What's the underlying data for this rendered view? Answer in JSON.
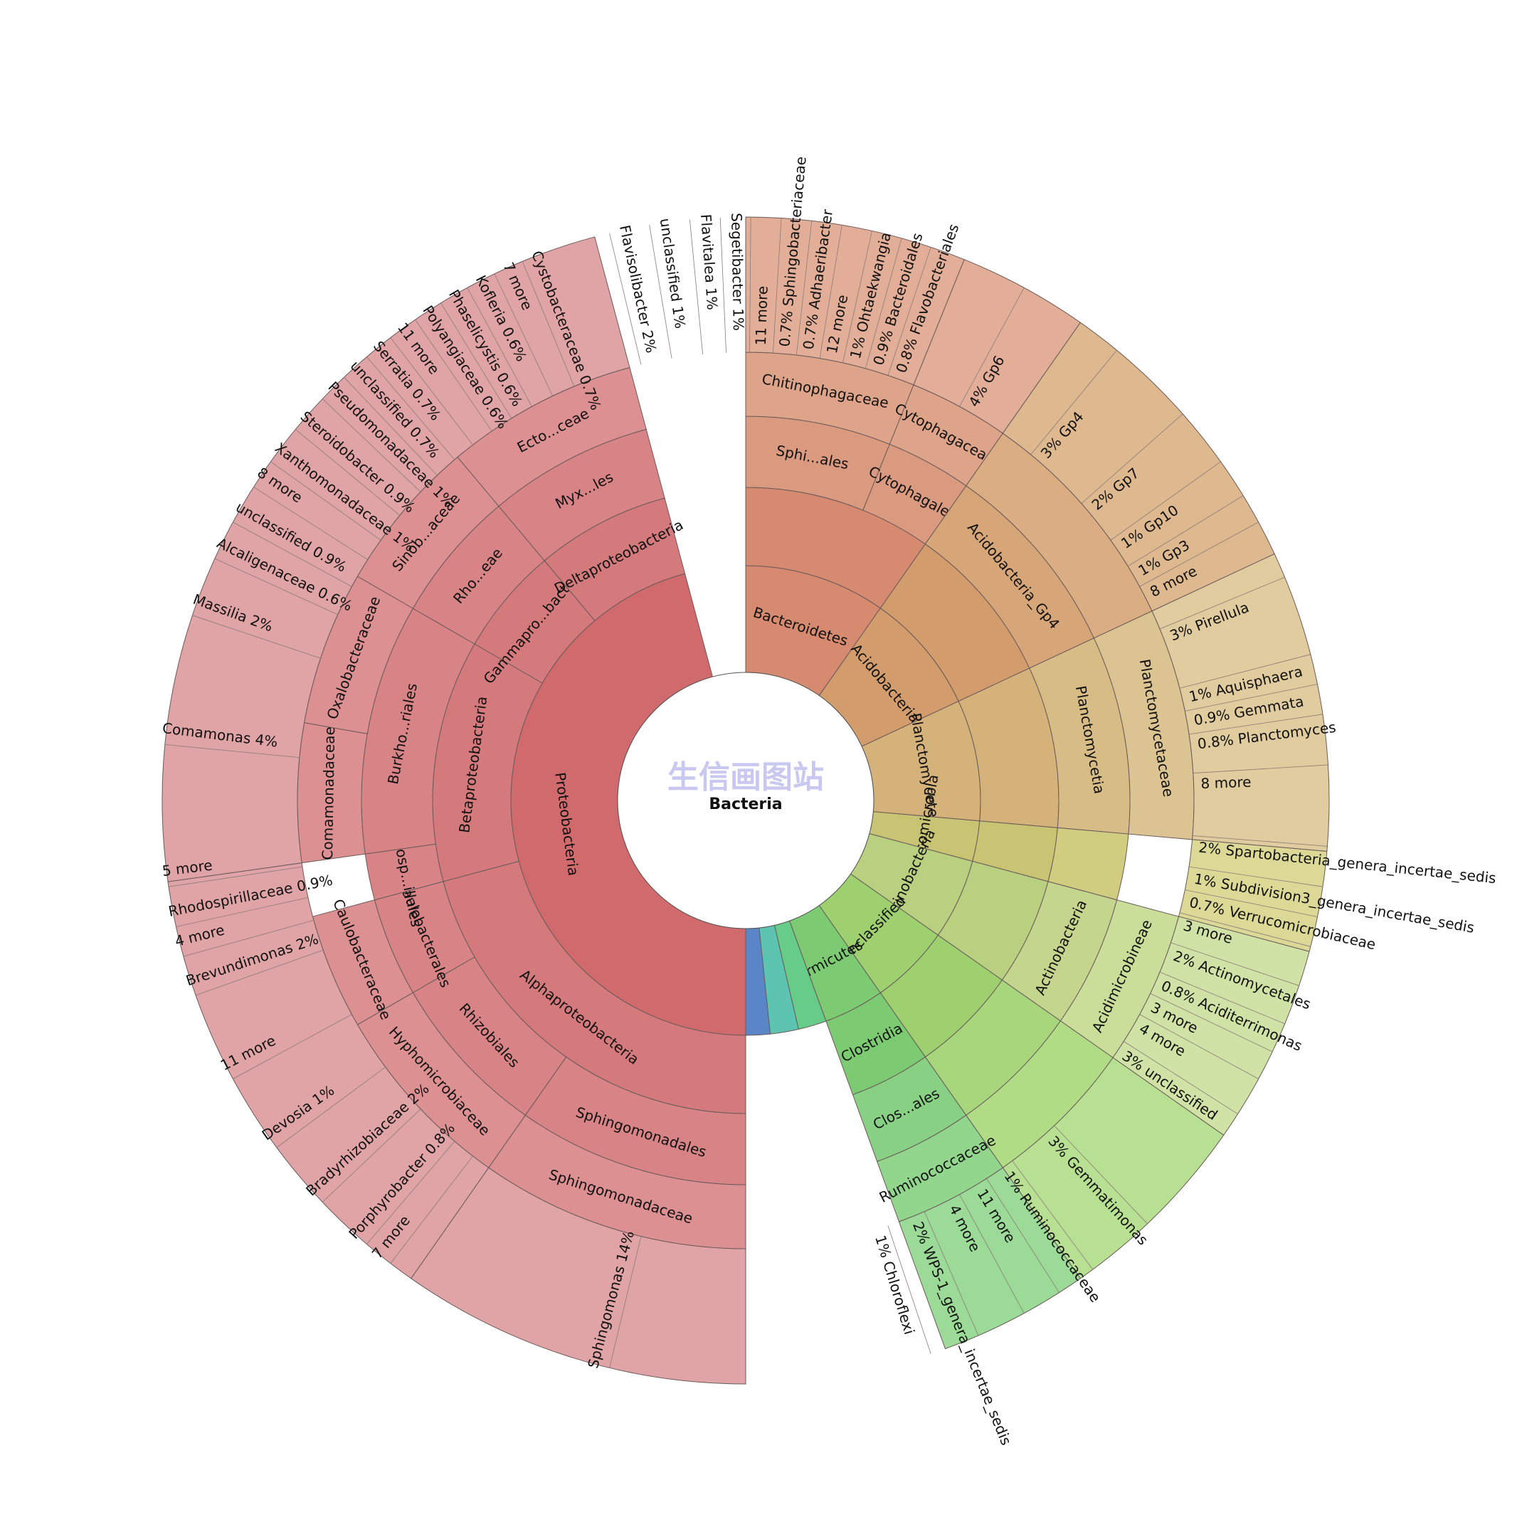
{
  "chart_data": {
    "type": "sunburst",
    "center_label": "Bacteria",
    "watermark": "生信画图站",
    "ring_count": 5,
    "wedges": [
      {
        "ring": 1,
        "start": 0,
        "end": 35,
        "label": "Bacteroidetes",
        "color": "#d68a70"
      },
      {
        "ring": 1,
        "start": 35,
        "end": 65,
        "label": "Acidobacteria",
        "color": "#d29c6c"
      },
      {
        "ring": 1,
        "start": 65,
        "end": 95,
        "label": "Planctomycetes",
        "color": "#d4b27a"
      },
      {
        "ring": 1,
        "start": 95,
        "end": 105,
        "label": "Verrucomicrobia",
        "color": "#c8c474"
      },
      {
        "ring": 1,
        "start": 105,
        "end": 125,
        "label": "Actinobacteria",
        "color": "#b8d080"
      },
      {
        "ring": 1,
        "start": 125,
        "end": 145,
        "label": "unclassified",
        "color": "#9ed070"
      },
      {
        "ring": 1,
        "start": 145,
        "end": 160,
        "label": "Firmicutes",
        "color": "#7cca72"
      },
      {
        "ring": 1,
        "start": 160,
        "end": 167,
        "label": "",
        "color": "#66cc88"
      },
      {
        "ring": 1,
        "start": 167,
        "end": 174,
        "label": "",
        "color": "#5cc4b0"
      },
      {
        "ring": 1,
        "start": 174,
        "end": 180,
        "label": "",
        "color": "#5a86c8"
      },
      {
        "ring": 1,
        "start": 180,
        "end": 345,
        "label": "Proteobacteria",
        "color": "#d06a6c"
      },
      {
        "ring": 2,
        "start": 0,
        "end": 35,
        "label": "",
        "color": "#d68a70"
      },
      {
        "ring": 2,
        "start": 35,
        "end": 65,
        "label": "",
        "color": "#d29c6c"
      },
      {
        "ring": 2,
        "start": 65,
        "end": 95,
        "label": "",
        "color": "#d4b27a"
      },
      {
        "ring": 2,
        "start": 95,
        "end": 105,
        "label": "",
        "color": "#c8c474"
      },
      {
        "ring": 2,
        "start": 105,
        "end": 125,
        "label": "",
        "color": "#b8d080"
      },
      {
        "ring": 2,
        "start": 125,
        "end": 145,
        "label": "",
        "color": "#9ed070"
      },
      {
        "ring": 2,
        "start": 145,
        "end": 160,
        "label": "Clostridia",
        "color": "#7cca72"
      },
      {
        "ring": 2,
        "start": 180,
        "end": 255,
        "label": "Alphaproteobacteria",
        "color": "#d47a7c"
      },
      {
        "ring": 2,
        "start": 255,
        "end": 300,
        "label": "Betaproteobacteria",
        "color": "#d47a7c"
      },
      {
        "ring": 2,
        "start": 300,
        "end": 320,
        "label": "Gammapro...bacteria",
        "color": "#d47a7c"
      },
      {
        "ring": 2,
        "start": 320,
        "end": 345,
        "label": "Deltaproteobacteria",
        "color": "#d47a7c"
      },
      {
        "ring": 3,
        "start": 0,
        "end": 22,
        "label": "Sphi...ales",
        "color": "#da9a80"
      },
      {
        "ring": 3,
        "start": 22,
        "end": 35,
        "label": "Cytophagales",
        "color": "#da9a80"
      },
      {
        "ring": 3,
        "start": 35,
        "end": 65,
        "label": "Acidobacteria_Gp4",
        "color": "#d6a678"
      },
      {
        "ring": 3,
        "start": 65,
        "end": 95,
        "label": "Planctomycetia",
        "color": "#d8bc86"
      },
      {
        "ring": 3,
        "start": 95,
        "end": 105,
        "label": "",
        "color": "#d0cc80"
      },
      {
        "ring": 3,
        "start": 105,
        "end": 125,
        "label": "Actinobacteria",
        "color": "#c4d68e"
      },
      {
        "ring": 3,
        "start": 125,
        "end": 145,
        "label": "",
        "color": "#a8d67c"
      },
      {
        "ring": 3,
        "start": 145,
        "end": 160,
        "label": "Clos...ales",
        "color": "#88d084"
      },
      {
        "ring": 3,
        "start": 180,
        "end": 215,
        "label": "Sphingomonadales",
        "color": "#d88486"
      },
      {
        "ring": 3,
        "start": 215,
        "end": 240,
        "label": "Rhizobiales",
        "color": "#d88486"
      },
      {
        "ring": 3,
        "start": 240,
        "end": 255,
        "label": "Caulobacterales",
        "color": "#d88486"
      },
      {
        "ring": 3,
        "start": 255,
        "end": 262,
        "label": "Rhodosp...illales",
        "color": "#d88486"
      },
      {
        "ring": 3,
        "start": 262,
        "end": 300,
        "label": "Burkho...riales",
        "color": "#d88486"
      },
      {
        "ring": 3,
        "start": 300,
        "end": 320,
        "label": "Rho...eae",
        "color": "#d88486"
      },
      {
        "ring": 3,
        "start": 320,
        "end": 345,
        "label": "Myx...les",
        "color": "#d88486"
      },
      {
        "ring": 4,
        "start": 0,
        "end": 22,
        "label": "Chitinophagaceae",
        "color": "#dea48a"
      },
      {
        "ring": 4,
        "start": 22,
        "end": 35,
        "label": "Cytophagaceae",
        "color": "#dea48a"
      },
      {
        "ring": 4,
        "start": 35,
        "end": 65,
        "label": "",
        "color": "#daae82"
      },
      {
        "ring": 4,
        "start": 65,
        "end": 95,
        "label": "Planctomycetaceae",
        "color": "#dcc492"
      },
      {
        "ring": 4,
        "start": 105,
        "end": 125,
        "label": "Acidimicrobineae",
        "color": "#cade9a"
      },
      {
        "ring": 4,
        "start": 125,
        "end": 145,
        "label": "",
        "color": "#b0dc86"
      },
      {
        "ring": 4,
        "start": 145,
        "end": 160,
        "label": "Ruminococcaceae",
        "color": "#92d68e"
      },
      {
        "ring": 4,
        "start": 180,
        "end": 215,
        "label": "Sphingomonadaceae",
        "color": "#dc9092"
      },
      {
        "ring": 4,
        "start": 215,
        "end": 240,
        "label": "Hyphomicrobiaceae",
        "color": "#dc9092"
      },
      {
        "ring": 4,
        "start": 240,
        "end": 255,
        "label": "Caulobacteraceae",
        "color": "#dc9092"
      },
      {
        "ring": 4,
        "start": 262,
        "end": 280,
        "label": "Comamonadaceae",
        "color": "#dc9092"
      },
      {
        "ring": 4,
        "start": 280,
        "end": 300,
        "label": "Oxalobacteraceae",
        "color": "#dc9092"
      },
      {
        "ring": 4,
        "start": 300,
        "end": 320,
        "label": "Sinob...aceae",
        "color": "#dc9092"
      },
      {
        "ring": 4,
        "start": 320,
        "end": 345,
        "label": "Ecto...ceae",
        "color": "#dc9092"
      },
      {
        "ring": 5,
        "start": 0,
        "end": 22,
        "label": "",
        "color": "#e2ae98"
      },
      {
        "ring": 5,
        "start": 22,
        "end": 35,
        "label": "",
        "color": "#e2ae98"
      },
      {
        "ring": 5,
        "start": 35,
        "end": 65,
        "label": "",
        "color": "#deb88e"
      },
      {
        "ring": 5,
        "start": 65,
        "end": 95,
        "label": "",
        "color": "#e0cc9e"
      },
      {
        "ring": 5,
        "start": 95,
        "end": 105,
        "label": "",
        "color": "#dcd896"
      },
      {
        "ring": 5,
        "start": 105,
        "end": 125,
        "label": "",
        "color": "#d0e2a6"
      },
      {
        "ring": 5,
        "start": 125,
        "end": 145,
        "label": "",
        "color": "#b8e092"
      },
      {
        "ring": 5,
        "start": 145,
        "end": 160,
        "label": "",
        "color": "#9cda98"
      },
      {
        "ring": 5,
        "start": 180,
        "end": 215,
        "label": "",
        "color": "#e0a4a6"
      },
      {
        "ring": 5,
        "start": 215,
        "end": 262,
        "label": "",
        "color": "#e0a4a6"
      },
      {
        "ring": 5,
        "start": 262,
        "end": 345,
        "label": "",
        "color": "#e0a4a6"
      }
    ],
    "leaf_labels": [
      {
        "angle": -12,
        "text": "Flavisolibacter  2%"
      },
      {
        "angle": -8,
        "text": "unclassified  1%"
      },
      {
        "angle": -4,
        "text": "Flavitalea  1%"
      },
      {
        "angle": -1,
        "text": "Segetibacter  1%"
      },
      {
        "angle": 2,
        "text": "11 more"
      },
      {
        "angle": 5,
        "text": "0.7%  Sphingobacteriaceae"
      },
      {
        "angle": 8,
        "text": "0.7%  Adhaeribacter"
      },
      {
        "angle": 11,
        "text": "12 more"
      },
      {
        "angle": 14,
        "text": "1%  Ohtaekwangia"
      },
      {
        "angle": 17,
        "text": "0.9%  Bacteroidales"
      },
      {
        "angle": 20,
        "text": "0.8%  Flavobacteriales"
      },
      {
        "angle": 30,
        "text": "4%  Gp6"
      },
      {
        "angle": 41,
        "text": "3%  Gp4"
      },
      {
        "angle": 50,
        "text": "2%  Gp7"
      },
      {
        "angle": 56,
        "text": "1%  Gp10"
      },
      {
        "angle": 60,
        "text": "1%  Gp3"
      },
      {
        "angle": 63,
        "text": "8 more"
      },
      {
        "angle": 69,
        "text": "3%  Pirellula"
      },
      {
        "angle": 77,
        "text": "1%  Aquisphaera"
      },
      {
        "angle": 80,
        "text": "0.9%  Gemmata"
      },
      {
        "angle": 83,
        "text": "0.8%  Planctomyces"
      },
      {
        "angle": 88,
        "text": "8 more"
      },
      {
        "angle": 96,
        "text": "2%  Spartobacteria_genera_incertae_sedis"
      },
      {
        "angle": 100,
        "text": "1%  Subdivision3_genera_incertae_sedis"
      },
      {
        "angle": 103,
        "text": "0.7%  Verrucomicrobiaceae"
      },
      {
        "angle": 106,
        "text": "3 more"
      },
      {
        "angle": 110,
        "text": "2%  Actinomycetales"
      },
      {
        "angle": 114,
        "text": "0.8%  Aciditerrimonas"
      },
      {
        "angle": 117,
        "text": "3 more"
      },
      {
        "angle": 120,
        "text": "4 more"
      },
      {
        "angle": 124,
        "text": "3%  unclassified"
      },
      {
        "angle": 138,
        "text": "3%  Gemmatimonas"
      },
      {
        "angle": 145,
        "text": "1%  Ruminococcaceae"
      },
      {
        "angle": 149,
        "text": "11 more"
      },
      {
        "angle": 153,
        "text": "4 more"
      },
      {
        "angle": 158,
        "text": "2%  WPS-1_genera_incertae_sedis"
      },
      {
        "angle": 163,
        "text": "1%  Chloroflexi"
      },
      {
        "angle": 195,
        "text": "Sphingomonas  14%"
      },
      {
        "angle": 219,
        "text": "7 more"
      },
      {
        "angle": 222,
        "text": "Porphyrobacter  0.8%"
      },
      {
        "angle": 228,
        "text": "Bradyrhizobiaceae  2%"
      },
      {
        "angle": 235,
        "text": "Devosia  1%"
      },
      {
        "angle": 243,
        "text": "11 more"
      },
      {
        "angle": 252,
        "text": "Brevundimonas  2%"
      },
      {
        "angle": 256,
        "text": "4 more"
      },
      {
        "angle": 259,
        "text": "Rhodospirillaceae  0.9%"
      },
      {
        "angle": 263,
        "text": "5 more"
      },
      {
        "angle": 277,
        "text": "Comamonas  4%"
      },
      {
        "angle": 290,
        "text": "Massilia  2%"
      },
      {
        "angle": 296,
        "text": "Alcaligenaceae  0.6%"
      },
      {
        "angle": 300,
        "text": "unclassified  0.9%"
      },
      {
        "angle": 304,
        "text": "8 more"
      },
      {
        "angle": 307,
        "text": "Xanthomonadaceae  1%"
      },
      {
        "angle": 311,
        "text": "Steroidobacter  0.9%"
      },
      {
        "angle": 315,
        "text": "Pseudomonadaceae  1%"
      },
      {
        "angle": 318,
        "text": "unclassified  0.7%"
      },
      {
        "angle": 321,
        "text": "Serratia  0.7%"
      },
      {
        "angle": 324,
        "text": "11 more"
      },
      {
        "angle": 327,
        "text": "Polyangiaceae  0.6%"
      },
      {
        "angle": 330,
        "text": "Phaselicystis  0.6%"
      },
      {
        "angle": 333,
        "text": "Kofleria  0.6%"
      },
      {
        "angle": 336,
        "text": "7 more"
      },
      {
        "angle": 339,
        "text": "Cystobacteraceae  0.7%"
      }
    ]
  }
}
